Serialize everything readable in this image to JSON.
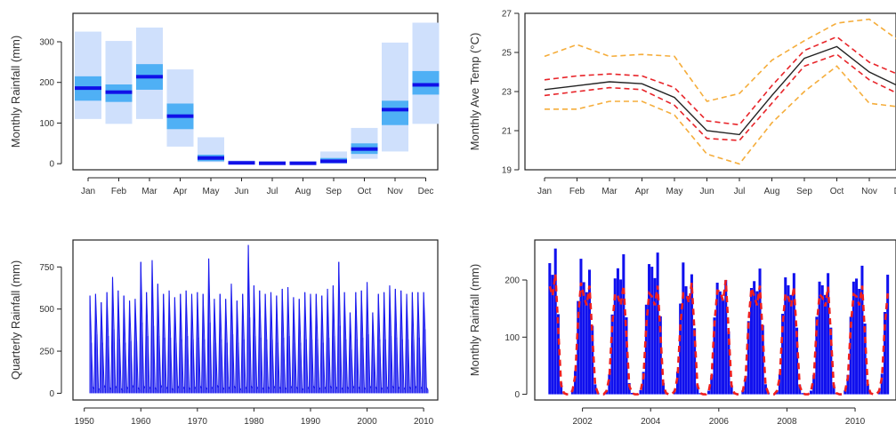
{
  "chart_data": [
    {
      "id": "monthly-rainfall-box",
      "type": "bar",
      "ylabel": "Monthly Rainfall (mm)",
      "ylim": [
        -15,
        370
      ],
      "yticks": [
        0,
        100,
        200,
        300
      ],
      "categories": [
        "Jan",
        "Feb",
        "Mar",
        "Apr",
        "May",
        "Jun",
        "Jul",
        "Aug",
        "Sep",
        "Oct",
        "Nov",
        "Dec"
      ],
      "outer_range": [
        [
          110,
          325
        ],
        [
          98,
          302
        ],
        [
          110,
          335
        ],
        [
          42,
          232
        ],
        [
          4,
          65
        ],
        [
          0,
          8
        ],
        [
          0,
          6
        ],
        [
          0,
          6
        ],
        [
          0,
          30
        ],
        [
          12,
          88
        ],
        [
          30,
          298
        ],
        [
          98,
          347
        ]
      ],
      "inner_range": [
        [
          155,
          215
        ],
        [
          152,
          195
        ],
        [
          182,
          245
        ],
        [
          85,
          148
        ],
        [
          6,
          22
        ],
        [
          0,
          4
        ],
        [
          0,
          3
        ],
        [
          0,
          3
        ],
        [
          1,
          14
        ],
        [
          24,
          50
        ],
        [
          95,
          155
        ],
        [
          170,
          228
        ]
      ],
      "median": [
        186,
        176,
        214,
        117,
        14,
        2,
        1,
        1,
        6,
        36,
        133,
        194
      ],
      "colors": {
        "outer": "#cfe0fc",
        "inner": "#4fb0f5",
        "median": "#1010e8"
      }
    },
    {
      "id": "monthly-temperature",
      "type": "line",
      "ylabel": "Monthly Ave Temp (°C)",
      "ylim": [
        19,
        27
      ],
      "yticks": [
        19,
        21,
        23,
        25,
        27
      ],
      "categories": [
        "Jan",
        "Feb",
        "Mar",
        "Apr",
        "May",
        "Jun",
        "Jul",
        "Aug",
        "Sep",
        "Oct",
        "Nov",
        "Dec"
      ],
      "series": [
        {
          "role": "mean",
          "color": "#222222",
          "dash": "solid",
          "values": [
            23.1,
            23.3,
            23.5,
            23.4,
            22.7,
            21.0,
            20.8,
            22.8,
            24.7,
            25.3,
            24.0,
            23.2
          ]
        },
        {
          "role": "inner-upper",
          "color": "#e8252a",
          "dash": "dashed",
          "values": [
            23.6,
            23.8,
            23.9,
            23.8,
            23.2,
            21.5,
            21.3,
            23.3,
            25.1,
            25.8,
            24.5,
            23.8
          ]
        },
        {
          "role": "inner-lower",
          "color": "#e8252a",
          "dash": "dashed",
          "values": [
            22.8,
            23.0,
            23.2,
            23.1,
            22.3,
            20.6,
            20.5,
            22.4,
            24.3,
            24.9,
            23.6,
            22.8
          ]
        },
        {
          "role": "outer-upper",
          "color": "#f5ad3b",
          "dash": "dashed",
          "values": [
            24.8,
            25.4,
            24.8,
            24.9,
            24.8,
            22.5,
            22.9,
            24.6,
            25.6,
            26.5,
            26.7,
            25.5
          ]
        },
        {
          "role": "outer-lower",
          "color": "#f5ad3b",
          "dash": "dashed",
          "values": [
            22.1,
            22.1,
            22.5,
            22.5,
            21.8,
            19.8,
            19.3,
            21.4,
            23.0,
            24.3,
            22.4,
            22.2
          ]
        }
      ]
    },
    {
      "id": "quarterly-rainfall",
      "type": "bar",
      "ylabel": "Quarterly Rainfall (mm)",
      "xlim": [
        1948,
        2012.5
      ],
      "ylim": [
        -40,
        910
      ],
      "yticks": [
        0,
        250,
        500,
        750
      ],
      "xticks": [
        1950,
        1960,
        1970,
        1980,
        1990,
        2000,
        2010
      ],
      "start_year": 1951,
      "end_year": 2010,
      "color": "#1a1aee",
      "annual_peaks": [
        580,
        590,
        540,
        600,
        690,
        610,
        580,
        550,
        560,
        780,
        600,
        790,
        650,
        590,
        610,
        570,
        590,
        610,
        590,
        600,
        590,
        800,
        560,
        590,
        560,
        650,
        550,
        590,
        880,
        640,
        610,
        590,
        600,
        580,
        620,
        630,
        570,
        560,
        600,
        590,
        590,
        580,
        620,
        640,
        780,
        600,
        480,
        600,
        610,
        660,
        480,
        590,
        600,
        640,
        620,
        610,
        590,
        600,
        600,
        600
      ],
      "secondary_peaks": [
        300,
        350,
        300,
        340,
        380,
        320,
        300,
        310,
        310,
        420,
        340,
        400,
        340,
        330,
        330,
        300,
        320,
        340,
        320,
        330,
        320,
        420,
        300,
        320,
        300,
        350,
        300,
        320,
        450,
        340,
        330,
        320,
        320,
        300,
        330,
        340,
        300,
        300,
        320,
        320,
        320,
        300,
        330,
        340,
        400,
        320,
        260,
        320,
        330,
        350,
        260,
        320,
        320,
        340,
        330,
        320,
        320,
        320,
        330,
        380
      ],
      "troughs": [
        40,
        30,
        50,
        35,
        45,
        30,
        40,
        50,
        35,
        45,
        40,
        35,
        50,
        40,
        30,
        45,
        40,
        35,
        40,
        45,
        35,
        40,
        50,
        35,
        40,
        45,
        30,
        40,
        45,
        40,
        35,
        40,
        45,
        40,
        35,
        45,
        40,
        30,
        40,
        45,
        35,
        40,
        45,
        40,
        35,
        40,
        45,
        40,
        35,
        45,
        40,
        35,
        40,
        45,
        40,
        35,
        40,
        45,
        40,
        35
      ]
    },
    {
      "id": "monthly-rainfall-series",
      "type": "bar",
      "ylabel": "Monthly Rainfall (mm)",
      "xlim": [
        2000.6,
        2011.2
      ],
      "ylim": [
        -10,
        270
      ],
      "yticks": [
        0,
        100,
        200
      ],
      "xticks": [
        2002,
        2004,
        2006,
        2008,
        2010
      ],
      "start_year": 2001,
      "end_year": 2010,
      "colors": {
        "bars": "#1010ee",
        "fit": "#ee2020"
      },
      "season_peaks": [
        255,
        218,
        245,
        248,
        210,
        200,
        220,
        212,
        212,
        225
      ],
      "fit_peaks": [
        210,
        190,
        190,
        190,
        195,
        200,
        190,
        188,
        188,
        190
      ]
    }
  ]
}
